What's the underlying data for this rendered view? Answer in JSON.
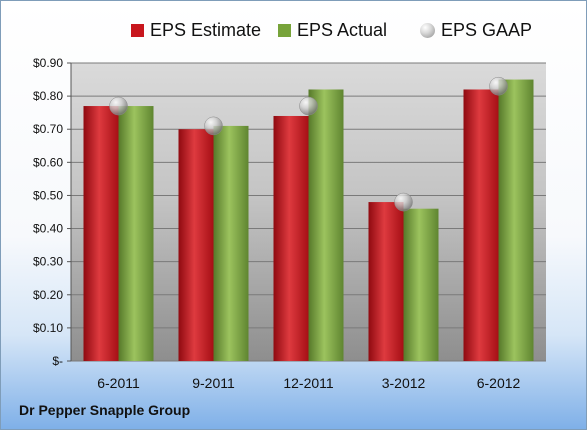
{
  "chart_data": {
    "type": "bar",
    "title": "",
    "xlabel": "",
    "ylabel": "",
    "categories": [
      "6-2011",
      "9-2011",
      "12-2011",
      "3-2012",
      "6-2012"
    ],
    "series": [
      {
        "name": "EPS Estimate",
        "kind": "bar",
        "color": "#c8161d",
        "values": [
          0.77,
          0.7,
          0.74,
          0.48,
          0.82
        ]
      },
      {
        "name": "EPS Actual",
        "kind": "bar",
        "color": "#77a33a",
        "values": [
          0.77,
          0.71,
          0.82,
          0.46,
          0.85
        ]
      },
      {
        "name": "EPS GAAP",
        "kind": "marker",
        "color": "#b0b0b0",
        "values": [
          0.77,
          0.71,
          0.77,
          0.48,
          0.83
        ]
      }
    ],
    "ylim": [
      0,
      0.9
    ],
    "yticks": [
      0,
      0.1,
      0.2,
      0.3,
      0.4,
      0.5,
      0.6,
      0.7,
      0.8,
      0.9
    ],
    "ytick_labels": [
      "$-",
      "$0.10",
      "$0.20",
      "$0.30",
      "$0.40",
      "$0.50",
      "$0.60",
      "$0.70",
      "$0.80",
      "$0.90"
    ],
    "grid": true,
    "legend_position": "top"
  },
  "footer": {
    "company": "Dr Pepper Snapple Group"
  }
}
